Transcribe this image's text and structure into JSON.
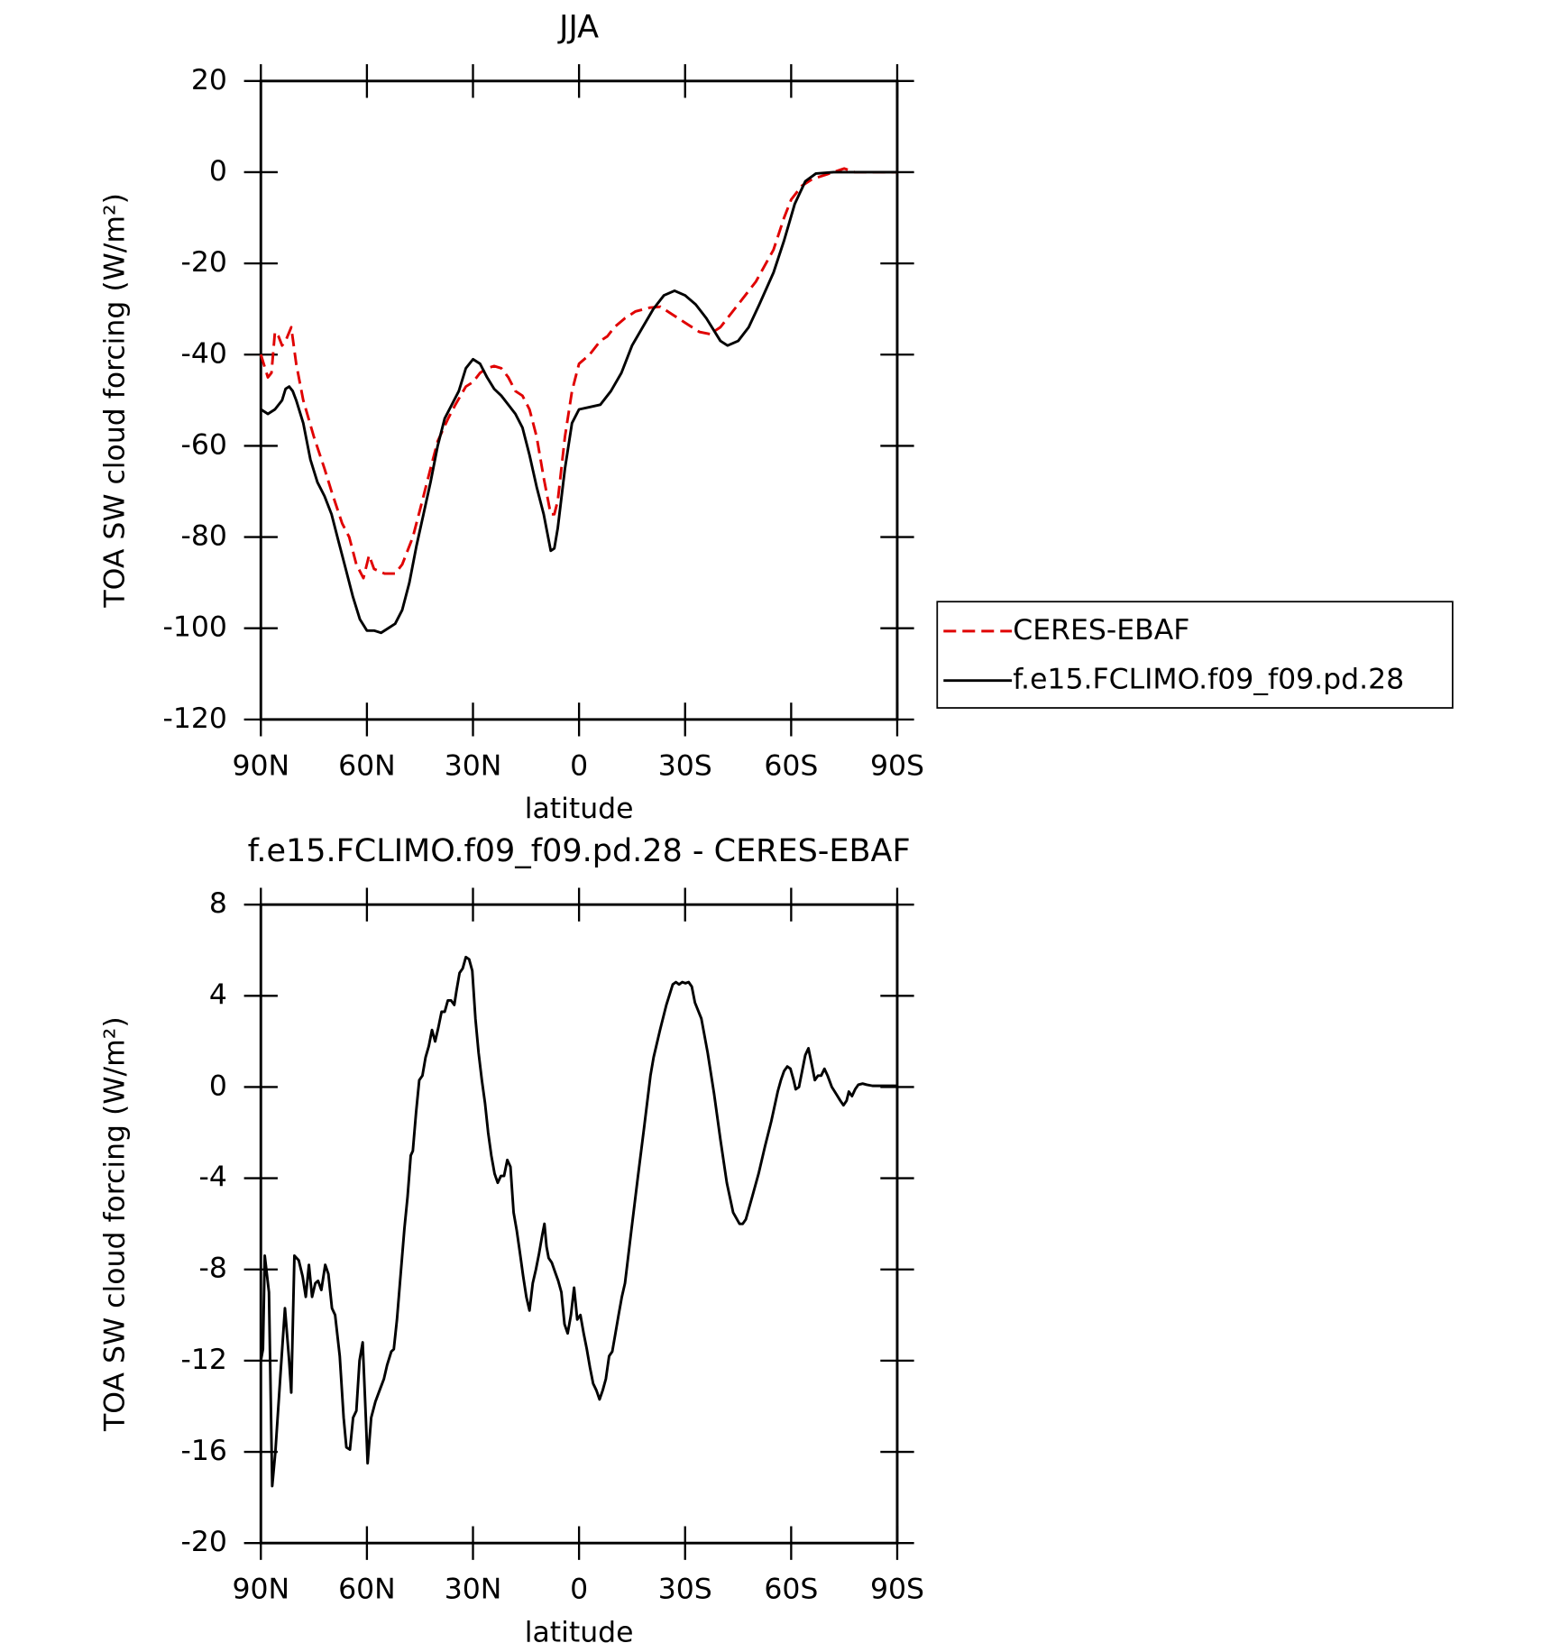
{
  "chart_data": [
    {
      "type": "line",
      "title": "JJA",
      "xlabel": "latitude",
      "ylabel": "TOA SW cloud forcing (W/m²)",
      "xlim": [
        90,
        -90
      ],
      "xticks": [
        {
          "value": 90,
          "label": "90N"
        },
        {
          "value": 60,
          "label": "60N"
        },
        {
          "value": 30,
          "label": "30N"
        },
        0,
        {
          "value": -30,
          "label": "30S"
        },
        {
          "value": -60,
          "label": "60S"
        },
        {
          "value": -90,
          "label": "90S"
        }
      ],
      "ylim": [
        -120,
        20
      ],
      "yticks": [
        -120,
        -100,
        -80,
        -60,
        -40,
        -20,
        0,
        20
      ],
      "legend": "right",
      "series": [
        {
          "name": "CERES-EBAF",
          "color": "#e00000",
          "dashed": true,
          "x": [
            90,
            88,
            87,
            86,
            85,
            84,
            83,
            81.4,
            80,
            78,
            75,
            72,
            70,
            67,
            65,
            63,
            61,
            59.4,
            58,
            55,
            52,
            50,
            47,
            45,
            42,
            40,
            37,
            35,
            32,
            30,
            28,
            26,
            24,
            22,
            20,
            18,
            16,
            14,
            12,
            10,
            8,
            7,
            6,
            4,
            2,
            0,
            -3,
            -6,
            -8,
            -10,
            -13,
            -16,
            -20,
            -23,
            -26,
            -30,
            -34,
            -37,
            -40,
            -43,
            -47,
            -50,
            -55,
            -58,
            -60,
            -63,
            -66,
            -70,
            -75,
            -78,
            -80,
            -85,
            -90
          ],
          "values": [
            -40,
            -45,
            -44,
            -35,
            -36,
            -38,
            -37,
            -34,
            -42,
            -50,
            -58,
            -65,
            -70,
            -77,
            -80,
            -86,
            -89,
            -84,
            -87,
            -88,
            -88,
            -86,
            -80,
            -74,
            -65,
            -59,
            -54,
            -51,
            -47,
            -46,
            -44,
            -43,
            -42.5,
            -43,
            -45,
            -48,
            -49,
            -52,
            -58,
            -67,
            -75,
            -75,
            -72,
            -58,
            -48,
            -42,
            -40,
            -37,
            -36,
            -34,
            -32,
            -30.5,
            -29.7,
            -29.5,
            -31,
            -33,
            -35,
            -35.5,
            -34,
            -31,
            -27,
            -24,
            -17,
            -10,
            -6,
            -3,
            -1.5,
            -0.5,
            0.8,
            0,
            0,
            0,
            0
          ]
        },
        {
          "name": "f.e15.FCLIMO.f09_f09.pd.28",
          "color": "#000000",
          "dashed": false,
          "x": [
            90,
            88,
            86,
            84,
            83,
            82,
            81,
            80,
            78,
            76,
            74,
            72,
            70,
            68,
            66,
            64,
            62,
            60,
            58,
            56,
            54,
            52,
            50,
            48,
            46,
            44,
            42,
            40,
            38,
            36,
            34,
            32,
            30,
            28,
            26,
            24,
            22,
            20,
            18,
            16,
            14,
            12,
            10,
            8,
            7,
            6,
            4,
            2,
            0,
            -3,
            -6,
            -9,
            -12,
            -15,
            -18,
            -21,
            -24,
            -27,
            -30,
            -33,
            -36,
            -40,
            -42,
            -45,
            -48,
            -51,
            -55,
            -58,
            -61,
            -64,
            -67,
            -72,
            -80,
            -90
          ],
          "values": [
            -52,
            -53,
            -52,
            -50,
            -47.5,
            -47,
            -48,
            -50,
            -55,
            -63,
            -68,
            -71,
            -75,
            -81,
            -87,
            -93,
            -98,
            -100.5,
            -100.5,
            -101,
            -100,
            -99,
            -96,
            -90,
            -82,
            -75,
            -68,
            -60,
            -54,
            -51,
            -48,
            -43,
            -41,
            -42,
            -45,
            -47.5,
            -49,
            -51,
            -53,
            -56,
            -62,
            -69,
            -75,
            -83,
            -82.5,
            -78,
            -65,
            -55,
            -52,
            -51.5,
            -51,
            -48,
            -44,
            -38,
            -34,
            -30,
            -27,
            -26,
            -27,
            -29,
            -32,
            -37,
            -38,
            -37,
            -34,
            -29,
            -22,
            -15,
            -7,
            -2,
            -0.3,
            0,
            0,
            0
          ]
        }
      ]
    },
    {
      "type": "line",
      "title": "f.e15.FCLIMO.f09_f09.pd.28 - CERES-EBAF",
      "xlabel": "latitude",
      "ylabel": "TOA SW cloud forcing (W/m²)",
      "xlim": [
        90,
        -90
      ],
      "xticks": [
        {
          "value": 90,
          "label": "90N"
        },
        {
          "value": 60,
          "label": "60N"
        },
        {
          "value": 30,
          "label": "30N"
        },
        0,
        {
          "value": -30,
          "label": "30S"
        },
        {
          "value": -60,
          "label": "60S"
        },
        {
          "value": -90,
          "label": "90S"
        }
      ],
      "ylim": [
        -20,
        8
      ],
      "yticks": [
        -20,
        -16,
        -12,
        -8,
        -4,
        0,
        4,
        8
      ],
      "series": [
        {
          "color": "#000000",
          "dashed": false,
          "x": [
            90,
            89.4,
            88.9,
            87.7,
            86.8,
            85.9,
            84.4,
            83.2,
            82,
            81.4,
            80.5,
            79.3,
            78.2,
            77.3,
            76.4,
            75.5,
            74.6,
            73.8,
            72.9,
            71.8,
            70.9,
            69.9,
            69,
            67.7,
            66.6,
            65.8,
            64.8,
            63.9,
            63,
            62.1,
            61.2,
            60.3,
            59.8,
            58.8,
            57.6,
            56.4,
            55.2,
            54.3,
            53.1,
            52.4,
            51.5,
            50.6,
            49.4,
            48.5,
            47.6,
            47,
            46.1,
            45.2,
            44.3,
            43.4,
            42.5,
            41.6,
            40.7,
            39.8,
            38.9,
            38,
            37.1,
            36.2,
            35.3,
            34.7,
            33.8,
            32.9,
            32,
            31.1,
            30.2,
            29.3,
            28.4,
            27.5,
            26.6,
            25.7,
            24.8,
            23.9,
            23,
            22.1,
            21.2,
            20.3,
            19.4,
            18.5,
            17.6,
            16.7,
            15.8,
            14.9,
            14,
            13.1,
            12.2,
            11.3,
            10.4,
            9.8,
            9.2,
            8.6,
            7.7,
            6.8,
            5.9,
            5,
            4.1,
            3.2,
            2.3,
            1.4,
            0.5,
            -0.4,
            -1.3,
            -2.2,
            -3.1,
            -4,
            -4.9,
            -5.8,
            -6.7,
            -7.6,
            -8.5,
            -9.4,
            -10.3,
            -11.2,
            -12.1,
            -13,
            -14.8,
            -16.6,
            -18.4,
            -20.2,
            -21.1,
            -22.9,
            -24.7,
            -26.5,
            -27.4,
            -28.3,
            -29.2,
            -30.1,
            -31,
            -31.9,
            -32.8,
            -34.6,
            -36.4,
            -38.2,
            -40,
            -41.8,
            -43.6,
            -45.4,
            -46.3,
            -47.2,
            -49,
            -50.8,
            -52.6,
            -54.4,
            -56.2,
            -57.1,
            -58,
            -58.9,
            -59.8,
            -60.7,
            -61.3,
            -62.2,
            -63.1,
            -64,
            -64.9,
            -65.8,
            -66.7,
            -67.6,
            -68.5,
            -69.4,
            -70.3,
            -71.5,
            -72.7,
            -73.9,
            -74.8,
            -75.7,
            -76.3,
            -77.2,
            -78.1,
            -79,
            -80.2,
            -81.4,
            -83,
            -86,
            -90
          ],
          "values": [
            -12,
            -11.5,
            -7.4,
            -9,
            -17.5,
            -16,
            -12.5,
            -9.7,
            -12,
            -13.4,
            -7.4,
            -7.6,
            -8.3,
            -9.2,
            -7.8,
            -9.2,
            -8.6,
            -8.5,
            -8.9,
            -7.8,
            -8.2,
            -9.7,
            -10,
            -11.8,
            -14.5,
            -15.8,
            -15.9,
            -14.5,
            -14.2,
            -12,
            -11.2,
            -14.5,
            -16.5,
            -14.5,
            -13.8,
            -13.3,
            -12.8,
            -12.2,
            -11.6,
            -11.5,
            -10.2,
            -8.5,
            -6.2,
            -4.8,
            -3,
            -2.8,
            -1.1,
            0.3,
            0.5,
            1.3,
            1.8,
            2.5,
            2,
            2.6,
            3.3,
            3.3,
            3.8,
            3.8,
            3.6,
            4.2,
            5,
            5.2,
            5.7,
            5.6,
            5.1,
            3,
            1.5,
            0.3,
            -0.7,
            -2,
            -3,
            -3.8,
            -4.2,
            -3.9,
            -3.9,
            -3.2,
            -3.5,
            -5.5,
            -6.3,
            -7.3,
            -8.3,
            -9.2,
            -9.8,
            -8.6,
            -8,
            -7.3,
            -6.5,
            -6,
            -7,
            -7.5,
            -7.7,
            -8.1,
            -8.5,
            -9,
            -10.4,
            -10.8,
            -10,
            -8.8,
            -10.2,
            -10,
            -10.8,
            -11.5,
            -12.3,
            -13,
            -13.3,
            -13.7,
            -13.3,
            -12.8,
            -11.8,
            -11.6,
            -10.8,
            -10,
            -9.2,
            -8.6,
            -6.3,
            -4,
            -1.8,
            0.5,
            1.3,
            2.5,
            3.6,
            4.5,
            4.6,
            4.5,
            4.6,
            4.55,
            4.6,
            4.4,
            3.7,
            3,
            1.5,
            -0.3,
            -2.3,
            -4.2,
            -5.5,
            -6,
            -6,
            -5.8,
            -4.8,
            -3.8,
            -2.6,
            -1.5,
            -0.2,
            0.3,
            0.7,
            0.9,
            0.8,
            0.3,
            -0.1,
            0,
            0.7,
            1.4,
            1.7,
            1,
            0.3,
            0.5,
            0.5,
            0.8,
            0.5,
            0,
            -0.3,
            -0.6,
            -0.8,
            -0.6,
            -0.2,
            -0.4,
            -0.1,
            0.1,
            0.15,
            0.1,
            0.05,
            0.05,
            0.05
          ]
        }
      ]
    }
  ]
}
